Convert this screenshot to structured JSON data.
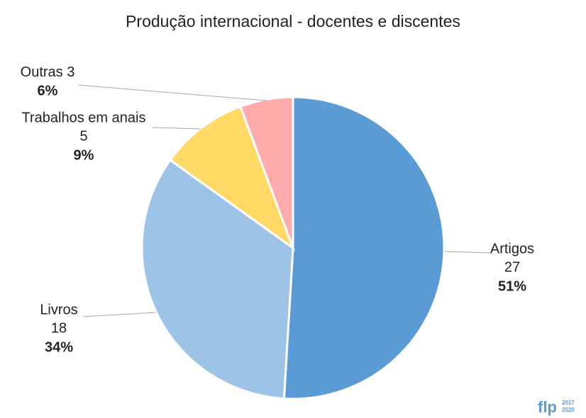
{
  "chart_data": {
    "type": "pie",
    "title": "Produção internacional - docentes e discentes",
    "categories": [
      "Artigos",
      "Livros",
      "Trabalhos em anais",
      "Outras"
    ],
    "values": [
      27,
      18,
      5,
      3
    ],
    "percent_labels": [
      "51%",
      "34%",
      "9%",
      "6%"
    ],
    "colors": [
      "#5b9bd5",
      "#9dc3e6",
      "#ffd966",
      "#ffabab"
    ]
  },
  "logo": {
    "text": "flp",
    "years": [
      "2017",
      "2020"
    ]
  }
}
